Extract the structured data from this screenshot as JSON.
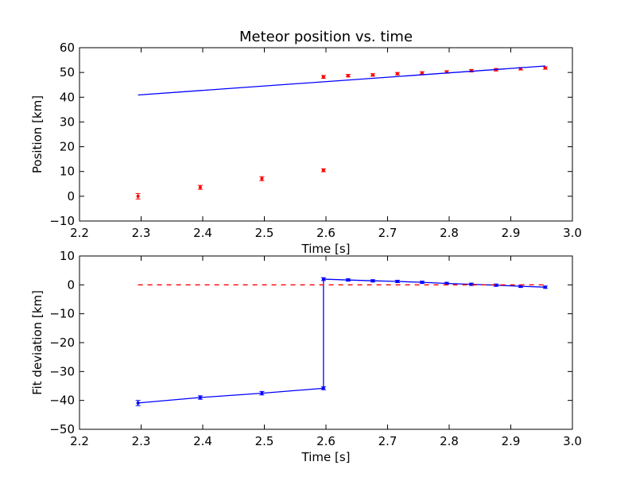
{
  "chart_data": [
    {
      "type": "scatter",
      "title": "Meteor position vs. time",
      "xlabel": "Time [s]",
      "ylabel": "Position [km]",
      "xlim": [
        2.2,
        3.0
      ],
      "ylim": [
        -10,
        60
      ],
      "xticks": [
        "2.2",
        "2.3",
        "2.4",
        "2.5",
        "2.6",
        "2.7",
        "2.8",
        "2.9",
        "3.0"
      ],
      "yticks": [
        "−10",
        "0",
        "10",
        "20",
        "30",
        "40",
        "50",
        "60"
      ],
      "grid": false,
      "series": [
        {
          "kind": "scatter-errorbar",
          "color": "#ff0000",
          "marker": "point",
          "x": [
            2.295,
            2.396,
            2.496,
            2.596,
            2.596,
            2.636,
            2.676,
            2.716,
            2.756,
            2.796,
            2.836,
            2.876,
            2.916,
            2.956
          ],
          "y": [
            0.0,
            3.6,
            7.1,
            10.5,
            48.2,
            48.7,
            49.0,
            49.5,
            49.8,
            50.2,
            50.7,
            51.1,
            51.5,
            51.8
          ],
          "yerr": [
            1.1,
            0.8,
            0.8,
            0.6,
            0.6,
            0.5,
            0.5,
            0.5,
            0.5,
            0.5,
            0.5,
            0.5,
            0.5,
            0.5
          ]
        },
        {
          "kind": "line",
          "color": "#0000ff",
          "x": [
            2.295,
            2.956
          ],
          "y": [
            40.9,
            52.6
          ]
        }
      ]
    },
    {
      "type": "line",
      "title": "",
      "xlabel": "Time [s]",
      "ylabel": "Fit deviation [km]",
      "xlim": [
        2.2,
        3.0
      ],
      "ylim": [
        -50,
        10
      ],
      "xticks": [
        "2.2",
        "2.3",
        "2.4",
        "2.5",
        "2.6",
        "2.7",
        "2.8",
        "2.9",
        "3.0"
      ],
      "yticks": [
        "−50",
        "−40",
        "−30",
        "−20",
        "−10",
        "0",
        "10"
      ],
      "grid": false,
      "series": [
        {
          "kind": "line-errorbar",
          "color": "#0000ff",
          "marker": "point",
          "x": [
            2.295,
            2.396,
            2.496,
            2.596,
            2.596,
            2.636,
            2.676,
            2.716,
            2.756,
            2.796,
            2.836,
            2.876,
            2.916,
            2.956
          ],
          "y": [
            -40.9,
            -39.0,
            -37.5,
            -35.8,
            2.0,
            1.7,
            1.4,
            1.2,
            0.9,
            0.5,
            0.2,
            -0.1,
            -0.5,
            -0.8
          ],
          "yerr": [
            0.9,
            0.6,
            0.6,
            0.5,
            0.5,
            0.4,
            0.4,
            0.4,
            0.4,
            0.4,
            0.4,
            0.4,
            0.4,
            0.4
          ]
        },
        {
          "kind": "dashed-line",
          "color": "#ff0000",
          "x": [
            2.295,
            2.956
          ],
          "y": [
            0,
            0
          ]
        }
      ]
    }
  ]
}
